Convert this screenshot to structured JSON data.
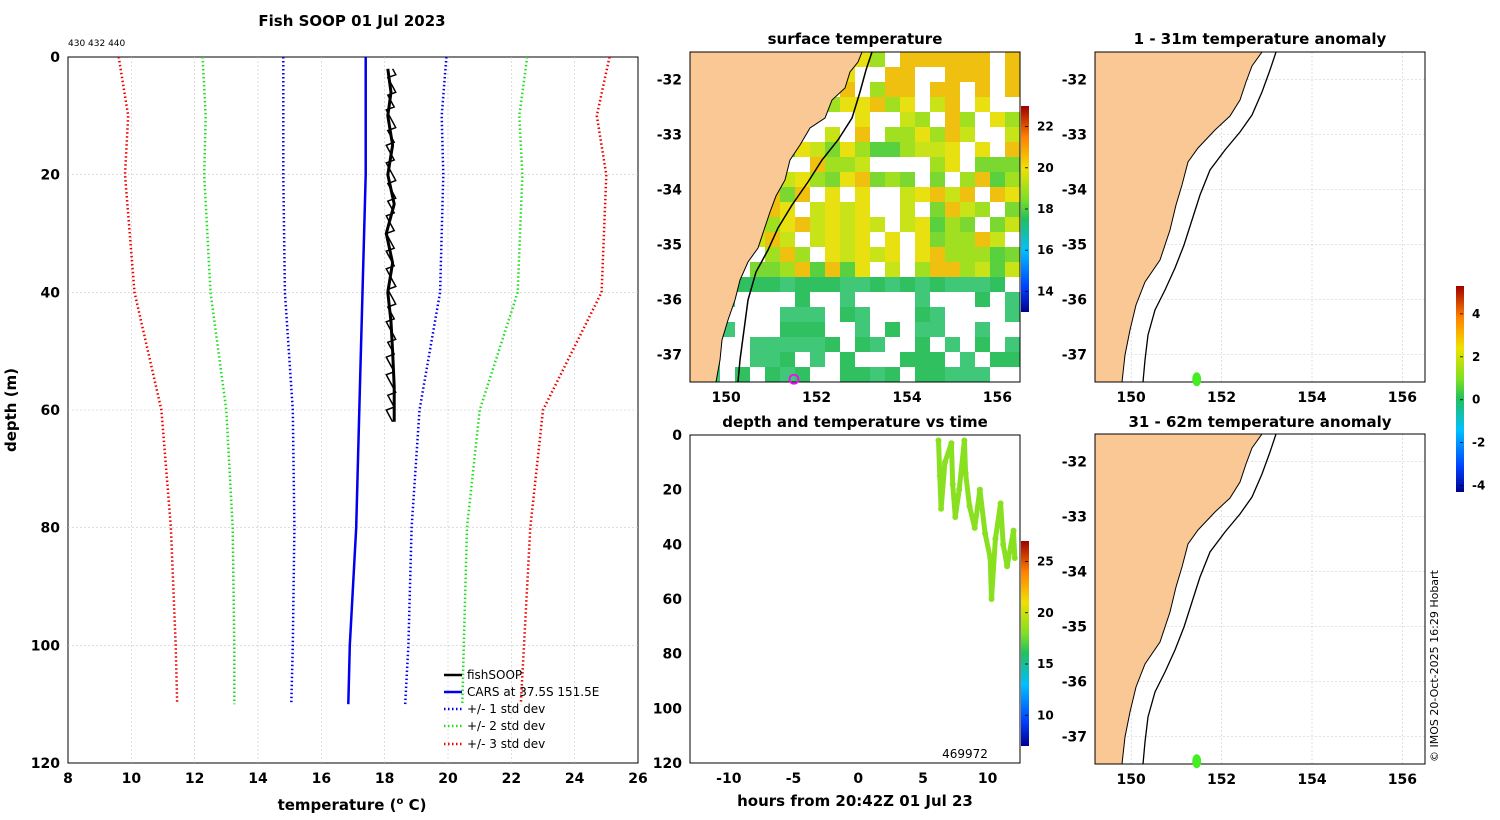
{
  "colors": {
    "fishsoop": "#000000",
    "cars": "#0000ee",
    "std1": "#0000ee",
    "std2": "#22dd22",
    "std3": "#ee0000",
    "land": "#f9c894",
    "grid": "#c8c8c8"
  },
  "chart_data": [
    {
      "id": "profile",
      "type": "line",
      "title": "Fish SOOP 01 Jul 2023",
      "subtitle": "430 432 440",
      "xlabel": "temperature (° C)",
      "xlabel_parts": [
        "temperature (",
        "o",
        " C)"
      ],
      "ylabel": "depth (m)",
      "xlim": [
        8,
        26
      ],
      "ylim": [
        0,
        120
      ],
      "y_inverted": true,
      "xticks": [
        8,
        10,
        12,
        14,
        16,
        18,
        20,
        22,
        24,
        26
      ],
      "yticks": [
        0,
        20,
        40,
        60,
        80,
        100,
        120
      ],
      "grid": true,
      "legend": "bottom-right",
      "series": [
        {
          "name": "fishSOOP",
          "style": "solid",
          "color": "#000000",
          "width": 3,
          "points": [
            [
              18.1,
              2
            ],
            [
              18.2,
              6
            ],
            [
              18.1,
              10
            ],
            [
              18.25,
              15
            ],
            [
              18.1,
              20
            ],
            [
              18.3,
              25
            ],
            [
              18.05,
              30
            ],
            [
              18.25,
              35
            ],
            [
              18.1,
              40
            ],
            [
              18.2,
              45
            ],
            [
              18.25,
              50
            ],
            [
              18.3,
              56
            ],
            [
              18.3,
              62
            ]
          ]
        },
        {
          "name": "CARS at 37.5S 151.5E",
          "style": "solid",
          "color": "#0000ee",
          "width": 2.5,
          "points": [
            [
              17.4,
              0
            ],
            [
              17.4,
              10
            ],
            [
              17.4,
              20
            ],
            [
              17.3,
              40
            ],
            [
              17.2,
              60
            ],
            [
              17.1,
              80
            ],
            [
              16.9,
              100
            ],
            [
              16.85,
              110
            ]
          ]
        },
        {
          "name": "+/- 1 std dev",
          "style": "dotted",
          "color": "#0000ee",
          "width": 2.5,
          "points": [
            [
              19.95,
              0
            ],
            [
              19.8,
              10
            ],
            [
              19.85,
              20
            ],
            [
              19.75,
              40
            ],
            [
              19.1,
              60
            ],
            [
              18.85,
              80
            ],
            [
              18.75,
              100
            ],
            [
              18.65,
              110
            ]
          ]
        },
        {
          "name": "+/- 1 std dev low",
          "legend": false,
          "style": "dotted",
          "color": "#0000ee",
          "width": 2.5,
          "points": [
            [
              14.8,
              0
            ],
            [
              14.8,
              10
            ],
            [
              14.8,
              20
            ],
            [
              14.85,
              40
            ],
            [
              15.1,
              60
            ],
            [
              15.15,
              80
            ],
            [
              15.1,
              100
            ],
            [
              15.05,
              110
            ]
          ]
        },
        {
          "name": "+/- 2 std dev",
          "style": "dotted",
          "color": "#22dd22",
          "width": 2.5,
          "points": [
            [
              22.5,
              0
            ],
            [
              22.25,
              10
            ],
            [
              22.35,
              20
            ],
            [
              22.2,
              40
            ],
            [
              21.0,
              60
            ],
            [
              20.6,
              80
            ],
            [
              20.5,
              100
            ],
            [
              20.45,
              110
            ]
          ]
        },
        {
          "name": "+/- 2 std dev low",
          "legend": false,
          "style": "dotted",
          "color": "#22dd22",
          "width": 2.5,
          "points": [
            [
              12.25,
              0
            ],
            [
              12.35,
              10
            ],
            [
              12.3,
              20
            ],
            [
              12.5,
              40
            ],
            [
              13.0,
              60
            ],
            [
              13.2,
              80
            ],
            [
              13.25,
              100
            ],
            [
              13.25,
              110
            ]
          ]
        },
        {
          "name": "+/- 3 std dev",
          "style": "dotted",
          "color": "#ee0000",
          "width": 2.5,
          "points": [
            [
              25.1,
              0
            ],
            [
              24.7,
              10
            ],
            [
              25.0,
              20
            ],
            [
              24.85,
              40
            ],
            [
              23.0,
              60
            ],
            [
              22.6,
              80
            ],
            [
              22.4,
              100
            ],
            [
              22.3,
              110
            ]
          ]
        },
        {
          "name": "+/- 3 std dev low",
          "legend": false,
          "style": "dotted",
          "color": "#ee0000",
          "width": 2.5,
          "points": [
            [
              9.6,
              0
            ],
            [
              9.9,
              10
            ],
            [
              9.8,
              20
            ],
            [
              10.1,
              40
            ],
            [
              10.95,
              60
            ],
            [
              11.25,
              80
            ],
            [
              11.4,
              100
            ],
            [
              11.45,
              110
            ]
          ]
        }
      ]
    },
    {
      "id": "sst",
      "type": "heatmap",
      "title": "surface temperature",
      "xlim": [
        149.2,
        156.5
      ],
      "ylim": [
        -37.5,
        -31.5
      ],
      "xticks": [
        150,
        152,
        154,
        156
      ],
      "yticks": [
        -32,
        -33,
        -34,
        -35,
        -36,
        -37
      ],
      "colorbar": {
        "ticks": [
          14,
          16,
          18,
          20,
          22
        ],
        "range": [
          13,
          23
        ]
      },
      "vessel_marker": [
        151.5,
        -37.45
      ]
    },
    {
      "id": "depth_time",
      "type": "scatter",
      "title": "depth and temperature vs time",
      "xlabel": "hours from 20:42Z 01 Jul 23",
      "xlim": [
        -13,
        12.5
      ],
      "ylim": [
        0,
        120
      ],
      "y_inverted": true,
      "xticks": [
        -10,
        -5,
        0,
        5,
        10
      ],
      "yticks": [
        0,
        20,
        40,
        60,
        80,
        100,
        120
      ],
      "annotation": "469972",
      "colorbar": {
        "ticks": [
          10,
          15,
          20,
          25
        ],
        "range": [
          7,
          27
        ]
      },
      "series_color": "#88e020",
      "points": [
        [
          6.2,
          2
        ],
        [
          6.3,
          15
        ],
        [
          6.4,
          27
        ],
        [
          6.7,
          10
        ],
        [
          7.2,
          3
        ],
        [
          7.3,
          18
        ],
        [
          7.5,
          30
        ],
        [
          7.8,
          20
        ],
        [
          8.2,
          2
        ],
        [
          8.3,
          14
        ],
        [
          8.6,
          26
        ],
        [
          9.0,
          34
        ],
        [
          9.4,
          20
        ],
        [
          9.8,
          36
        ],
        [
          10.2,
          45
        ],
        [
          10.3,
          60
        ],
        [
          10.6,
          38
        ],
        [
          11.0,
          25
        ],
        [
          11.2,
          40
        ],
        [
          11.5,
          48
        ],
        [
          12.0,
          35
        ],
        [
          12.1,
          45
        ]
      ]
    },
    {
      "id": "anom_top",
      "type": "scatter",
      "title": "1 - 31m temperature anomaly",
      "xlim": [
        149.2,
        156.5
      ],
      "ylim": [
        -37.5,
        -31.5
      ],
      "xticks": [
        150,
        152,
        154,
        156
      ],
      "yticks": [
        -32,
        -33,
        -34,
        -35,
        -36,
        -37
      ],
      "points": [
        [
          151.45,
          -37.45
        ]
      ]
    },
    {
      "id": "anom_bottom",
      "type": "scatter",
      "title": "31 - 62m temperature anomaly",
      "xlim": [
        149.2,
        156.5
      ],
      "ylim": [
        -37.5,
        -31.5
      ],
      "xticks": [
        150,
        152,
        154,
        156
      ],
      "yticks": [
        -32,
        -33,
        -34,
        -35,
        -36,
        -37
      ],
      "points": [
        [
          151.45,
          -37.45
        ]
      ],
      "colorbar": {
        "ticks": [
          -4,
          -2,
          0,
          2,
          4
        ],
        "range": [
          -4.3,
          5.3
        ]
      }
    }
  ],
  "footer": "© IMOS 20-Oct-2025 16:29 Hobart"
}
